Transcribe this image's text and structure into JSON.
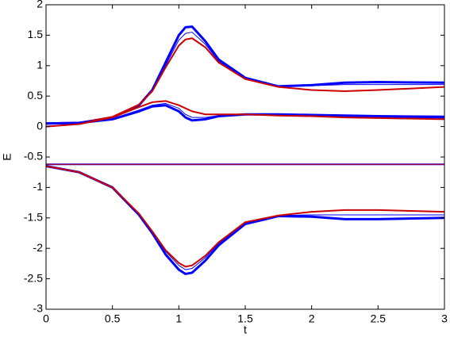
{
  "chart_data": {
    "type": "line",
    "xlabel": "t",
    "ylabel": "E",
    "x": [
      0,
      0.25,
      0.5,
      0.7,
      0.8,
      0.9,
      1.0,
      1.05,
      1.1,
      1.2,
      1.3,
      1.5,
      1.75,
      2.0,
      2.25,
      2.5,
      3.0
    ],
    "series": [
      {
        "color": "#0000ff",
        "width": 3,
        "values": [
          0.05,
          0.06,
          0.15,
          0.35,
          0.6,
          1.05,
          1.5,
          1.63,
          1.64,
          1.4,
          1.1,
          0.8,
          0.66,
          0.68,
          0.72,
          0.73,
          0.72
        ]
      },
      {
        "color": "#0000ff",
        "width": 1,
        "values": [
          0.05,
          0.06,
          0.15,
          0.35,
          0.58,
          1.0,
          1.42,
          1.53,
          1.55,
          1.35,
          1.07,
          0.78,
          0.66,
          0.67,
          0.69,
          0.69,
          0.69
        ]
      },
      {
        "color": "#cc0000",
        "width": 2,
        "values": [
          0.05,
          0.06,
          0.16,
          0.36,
          0.58,
          0.97,
          1.33,
          1.43,
          1.45,
          1.3,
          1.05,
          0.78,
          0.65,
          0.6,
          0.58,
          0.6,
          0.65
        ]
      },
      {
        "color": "#0000ff",
        "width": 3,
        "values": [
          0.05,
          0.06,
          0.12,
          0.25,
          0.33,
          0.35,
          0.25,
          0.15,
          0.1,
          0.12,
          0.17,
          0.2,
          0.2,
          0.19,
          0.18,
          0.17,
          0.16
        ]
      },
      {
        "color": "#0000ff",
        "width": 1,
        "values": [
          0.05,
          0.06,
          0.13,
          0.27,
          0.35,
          0.38,
          0.3,
          0.2,
          0.15,
          0.15,
          0.18,
          0.2,
          0.19,
          0.18,
          0.16,
          0.15,
          0.14
        ]
      },
      {
        "color": "#cc0000",
        "width": 2,
        "values": [
          0.0,
          0.04,
          0.15,
          0.32,
          0.4,
          0.42,
          0.35,
          0.3,
          0.25,
          0.2,
          0.2,
          0.2,
          0.18,
          0.17,
          0.15,
          0.14,
          0.12
        ]
      },
      {
        "color": "#0000ff",
        "width": 2,
        "values": [
          -0.62,
          -0.62,
          -0.62,
          -0.62,
          -0.62,
          -0.62,
          -0.62,
          -0.62,
          -0.62,
          -0.62,
          -0.62,
          -0.62,
          -0.62,
          -0.62,
          -0.62,
          -0.62,
          -0.62
        ]
      },
      {
        "color": "#cc0000",
        "width": 1,
        "values": [
          -0.62,
          -0.62,
          -0.62,
          -0.62,
          -0.62,
          -0.62,
          -0.62,
          -0.62,
          -0.62,
          -0.62,
          -0.62,
          -0.62,
          -0.62,
          -0.62,
          -0.62,
          -0.62,
          -0.62
        ]
      },
      {
        "color": "#0000ff",
        "width": 3,
        "values": [
          -0.65,
          -0.75,
          -1.0,
          -1.45,
          -1.75,
          -2.1,
          -2.35,
          -2.42,
          -2.4,
          -2.2,
          -1.95,
          -1.6,
          -1.47,
          -1.48,
          -1.52,
          -1.52,
          -1.5
        ]
      },
      {
        "color": "#0000ff",
        "width": 1,
        "values": [
          -0.65,
          -0.75,
          -1.0,
          -1.44,
          -1.73,
          -2.05,
          -2.28,
          -2.35,
          -2.33,
          -2.15,
          -1.92,
          -1.58,
          -1.46,
          -1.45,
          -1.45,
          -1.45,
          -1.45
        ]
      },
      {
        "color": "#cc0000",
        "width": 2,
        "values": [
          -0.65,
          -0.75,
          -1.0,
          -1.43,
          -1.72,
          -2.03,
          -2.24,
          -2.3,
          -2.28,
          -2.12,
          -1.9,
          -1.57,
          -1.46,
          -1.4,
          -1.37,
          -1.37,
          -1.4
        ]
      }
    ],
    "xlim": [
      0,
      3
    ],
    "xticks": [
      0,
      0.5,
      1,
      1.5,
      2,
      2.5,
      3
    ],
    "ylim": [
      -3,
      2
    ],
    "yticks": [
      -3,
      -2.5,
      -2,
      -1.5,
      -1,
      -0.5,
      0,
      0.5,
      1,
      1.5,
      2
    ]
  }
}
